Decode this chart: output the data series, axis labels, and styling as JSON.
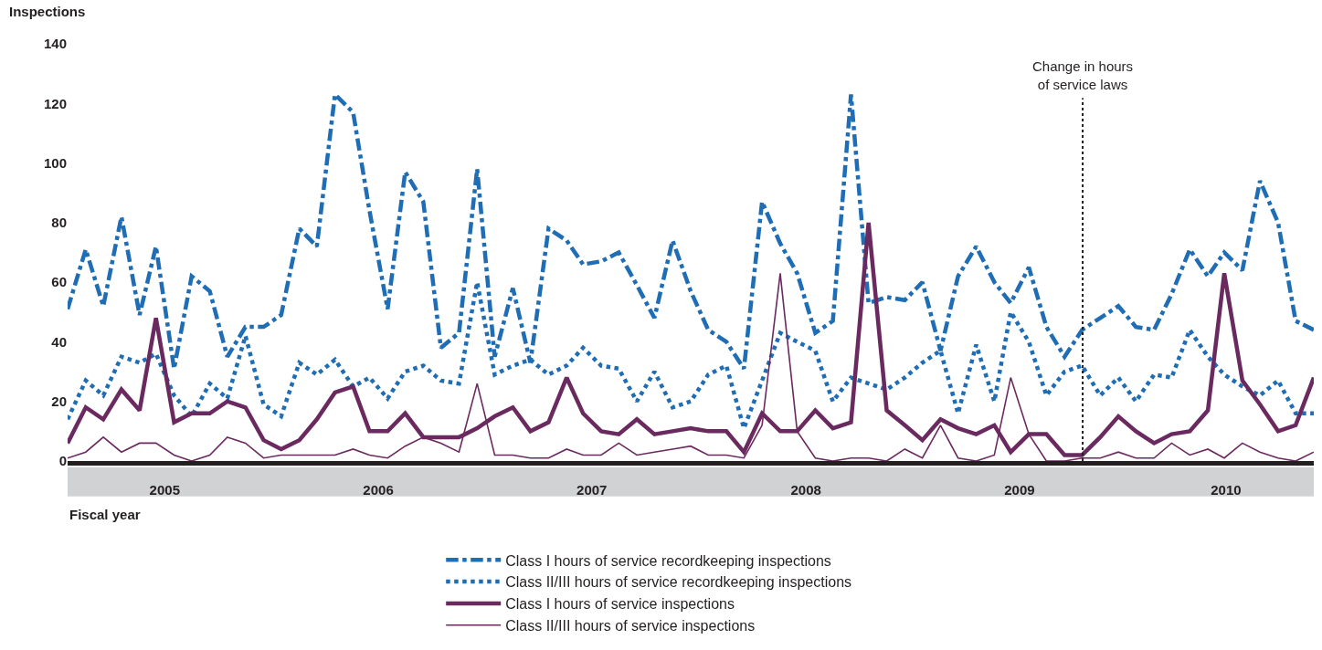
{
  "chart_data": {
    "type": "line",
    "ylabel": "Inspections",
    "xlabel": "Fiscal year",
    "x": [
      "2004-10",
      "2004-11",
      "2004-12",
      "2005-01",
      "2005-02",
      "2005-03",
      "2005-04",
      "2005-05",
      "2005-06",
      "2005-07",
      "2005-08",
      "2005-09",
      "2005-10",
      "2005-11",
      "2005-12",
      "2006-01",
      "2006-02",
      "2006-03",
      "2006-04",
      "2006-05",
      "2006-06",
      "2006-07",
      "2006-08",
      "2006-09",
      "2006-10",
      "2006-11",
      "2006-12",
      "2007-01",
      "2007-02",
      "2007-03",
      "2007-04",
      "2007-05",
      "2007-06",
      "2007-07",
      "2007-08",
      "2007-09",
      "2007-10",
      "2007-11",
      "2007-12",
      "2008-01",
      "2008-02",
      "2008-03",
      "2008-04",
      "2008-05",
      "2008-06",
      "2008-07",
      "2008-08",
      "2008-09",
      "2008-10",
      "2008-11",
      "2008-12",
      "2009-01",
      "2009-02",
      "2009-03",
      "2009-04",
      "2009-05",
      "2009-06",
      "2009-07",
      "2009-08",
      "2009-09",
      "2009-10",
      "2009-11",
      "2009-12",
      "2010-01",
      "2010-02",
      "2010-03",
      "2010-04",
      "2010-05",
      "2010-06",
      "2010-07",
      "2010-08"
    ],
    "series": [
      {
        "name": "Class I hours of service recordkeeping inspections",
        "color": "#1f6db5",
        "line_style": "dashdot",
        "values": [
          51,
          71,
          52,
          82,
          49,
          72,
          31,
          62,
          57,
          35,
          45,
          45,
          49,
          78,
          72,
          123,
          117,
          84,
          51,
          97,
          87,
          38,
          43,
          98,
          35,
          58,
          33,
          78,
          74,
          66,
          67,
          70,
          59,
          48,
          74,
          57,
          44,
          40,
          31,
          87,
          73,
          63,
          43,
          47,
          123,
          53,
          55,
          54,
          60,
          37,
          62,
          72,
          60,
          53,
          65,
          45,
          35,
          44,
          48,
          52,
          45,
          44,
          56,
          71,
          62,
          70,
          64,
          94,
          80,
          47,
          44
        ]
      },
      {
        "name": "Class II/III hours of service recordkeeping inspections",
        "color": "#1f6db5",
        "line_style": "dotted",
        "values": [
          14,
          27,
          22,
          35,
          33,
          36,
          22,
          15,
          26,
          21,
          42,
          19,
          15,
          33,
          29,
          34,
          25,
          28,
          21,
          30,
          32,
          27,
          26,
          60,
          29,
          32,
          34,
          29,
          32,
          38,
          32,
          31,
          20,
          30,
          18,
          20,
          29,
          32,
          11,
          27,
          43,
          40,
          37,
          20,
          28,
          26,
          24,
          28,
          33,
          37,
          16,
          39,
          20,
          50,
          40,
          22,
          30,
          32,
          22,
          28,
          20,
          29,
          28,
          44,
          35,
          29,
          25,
          22,
          27,
          16,
          16
        ]
      },
      {
        "name": "Class I hours of service inspections",
        "color": "#6b2a5f",
        "line_style": "solid",
        "values": [
          6,
          18,
          14,
          24,
          17,
          48,
          13,
          16,
          16,
          20,
          18,
          7,
          4,
          7,
          14,
          23,
          25,
          10,
          10,
          16,
          8,
          8,
          8,
          11,
          15,
          18,
          10,
          13,
          28,
          16,
          10,
          9,
          14,
          9,
          10,
          11,
          10,
          10,
          3,
          16,
          10,
          10,
          17,
          11,
          13,
          80,
          17,
          12,
          7,
          14,
          11,
          9,
          12,
          3,
          9,
          9,
          2,
          2,
          8,
          15,
          10,
          6,
          9,
          10,
          17,
          63,
          27,
          19,
          10,
          12,
          28
        ]
      },
      {
        "name": "Class II/III hours of service inspections",
        "color": "#6b2a5f",
        "line_style": "solid",
        "values": [
          1,
          3,
          8,
          3,
          6,
          6,
          2,
          0,
          2,
          8,
          6,
          1,
          2,
          2,
          2,
          2,
          4,
          2,
          1,
          5,
          8,
          6,
          3,
          26,
          2,
          2,
          1,
          1,
          4,
          2,
          2,
          6,
          2,
          3,
          4,
          5,
          2,
          2,
          1,
          12,
          63,
          10,
          1,
          0,
          1,
          1,
          0,
          4,
          1,
          12,
          1,
          0,
          2,
          28,
          9,
          0,
          0,
          1,
          1,
          3,
          1,
          1,
          6,
          2,
          4,
          1,
          6,
          3,
          1,
          0,
          3
        ]
      }
    ],
    "xlim": [
      "2004-10-01",
      "2010-08-01"
    ],
    "xticks": [
      {
        "value": "2005-03-16",
        "label": "2005"
      },
      {
        "value": "2006-03-16",
        "label": "2006"
      },
      {
        "value": "2007-03-16",
        "label": "2007"
      },
      {
        "value": "2008-03-16",
        "label": "2008"
      },
      {
        "value": "2009-03-16",
        "label": "2009"
      },
      {
        "value": "2010-03-04",
        "label": "2010"
      }
    ],
    "ylim": [
      0,
      140
    ],
    "yticks": [
      0,
      20,
      40,
      60,
      80,
      100,
      120,
      140
    ],
    "ref_lines": [
      {
        "axis": "x",
        "value": "2009-07-02",
        "label": "Change in hours\nof service laws",
        "color": "#231f20",
        "line_style": "dotted"
      }
    ],
    "legend": "bottom",
    "marker": "none"
  }
}
